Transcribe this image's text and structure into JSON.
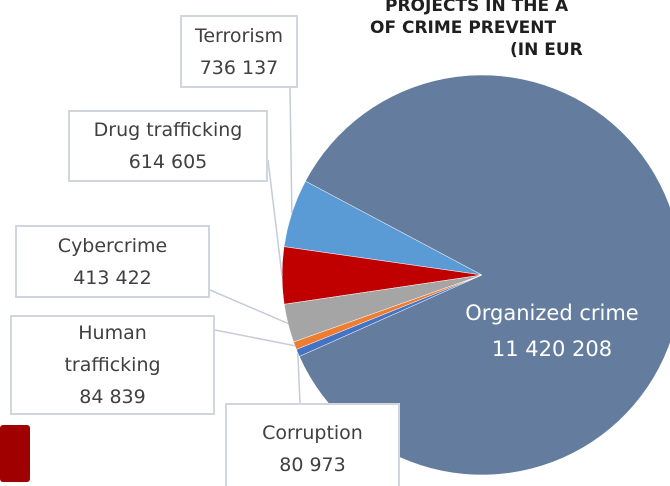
{
  "chart_data": {
    "type": "pie",
    "title": [
      "PROJECTS IN THE A",
      "OF CRIME PREVENT",
      "(IN EUR"
    ],
    "categories": [
      "Terrorism",
      "Drug trafficking",
      "Cybercrime",
      "Human trafficking",
      "Corruption",
      "Organized crime"
    ],
    "values": [
      736137,
      614605,
      413422,
      84839,
      80973,
      11420208
    ],
    "value_labels": [
      "736 137",
      "614 605",
      "413 422",
      "84 839",
      "80 973",
      "11 420 208"
    ],
    "colors": [
      "#5b9bd5",
      "#c00000",
      "#a5a5a5",
      "#ed7d31",
      "#4472c4",
      "#647c9e"
    ]
  }
}
